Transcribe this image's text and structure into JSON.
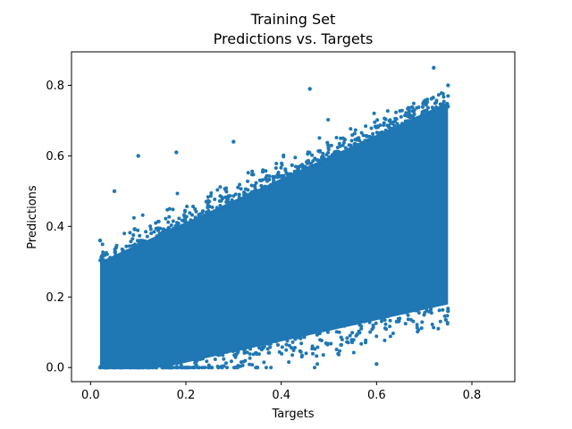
{
  "chart_data": {
    "type": "scatter",
    "title": "Training Set",
    "subtitle": "Predictions vs. Targets",
    "xlabel": "Targets",
    "ylabel": "Predictions",
    "xlim": [
      -0.04,
      0.89
    ],
    "ylim": [
      -0.04,
      0.895
    ],
    "xticks": [
      0.0,
      0.2,
      0.4,
      0.6,
      0.8
    ],
    "yticks": [
      0.0,
      0.2,
      0.4,
      0.6,
      0.8
    ],
    "xtick_labels": [
      "0.0",
      "0.2",
      "0.4",
      "0.6",
      "0.8"
    ],
    "ytick_labels": [
      "0.0",
      "0.2",
      "0.4",
      "0.6",
      "0.8"
    ],
    "grid": false,
    "marker_color": "#1f77b4",
    "series": [
      {
        "values": [
          {
            "x": 0.02,
            "y": 0.0
          },
          {
            "x": 0.02,
            "y": 0.36
          },
          {
            "x": 0.05,
            "y": 0.5
          },
          {
            "x": 0.1,
            "y": 0.6
          },
          {
            "x": 0.18,
            "y": 0.61
          },
          {
            "x": 0.3,
            "y": 0.64
          },
          {
            "x": 0.46,
            "y": 0.79
          },
          {
            "x": 0.72,
            "y": 0.85
          },
          {
            "x": 0.75,
            "y": 0.8
          },
          {
            "x": 0.75,
            "y": 0.74
          },
          {
            "x": 0.75,
            "y": 0.16
          },
          {
            "x": 0.6,
            "y": 0.01
          },
          {
            "x": 0.35,
            "y": 0.0
          },
          {
            "x": 0.1,
            "y": 0.0
          }
        ]
      }
    ]
  }
}
